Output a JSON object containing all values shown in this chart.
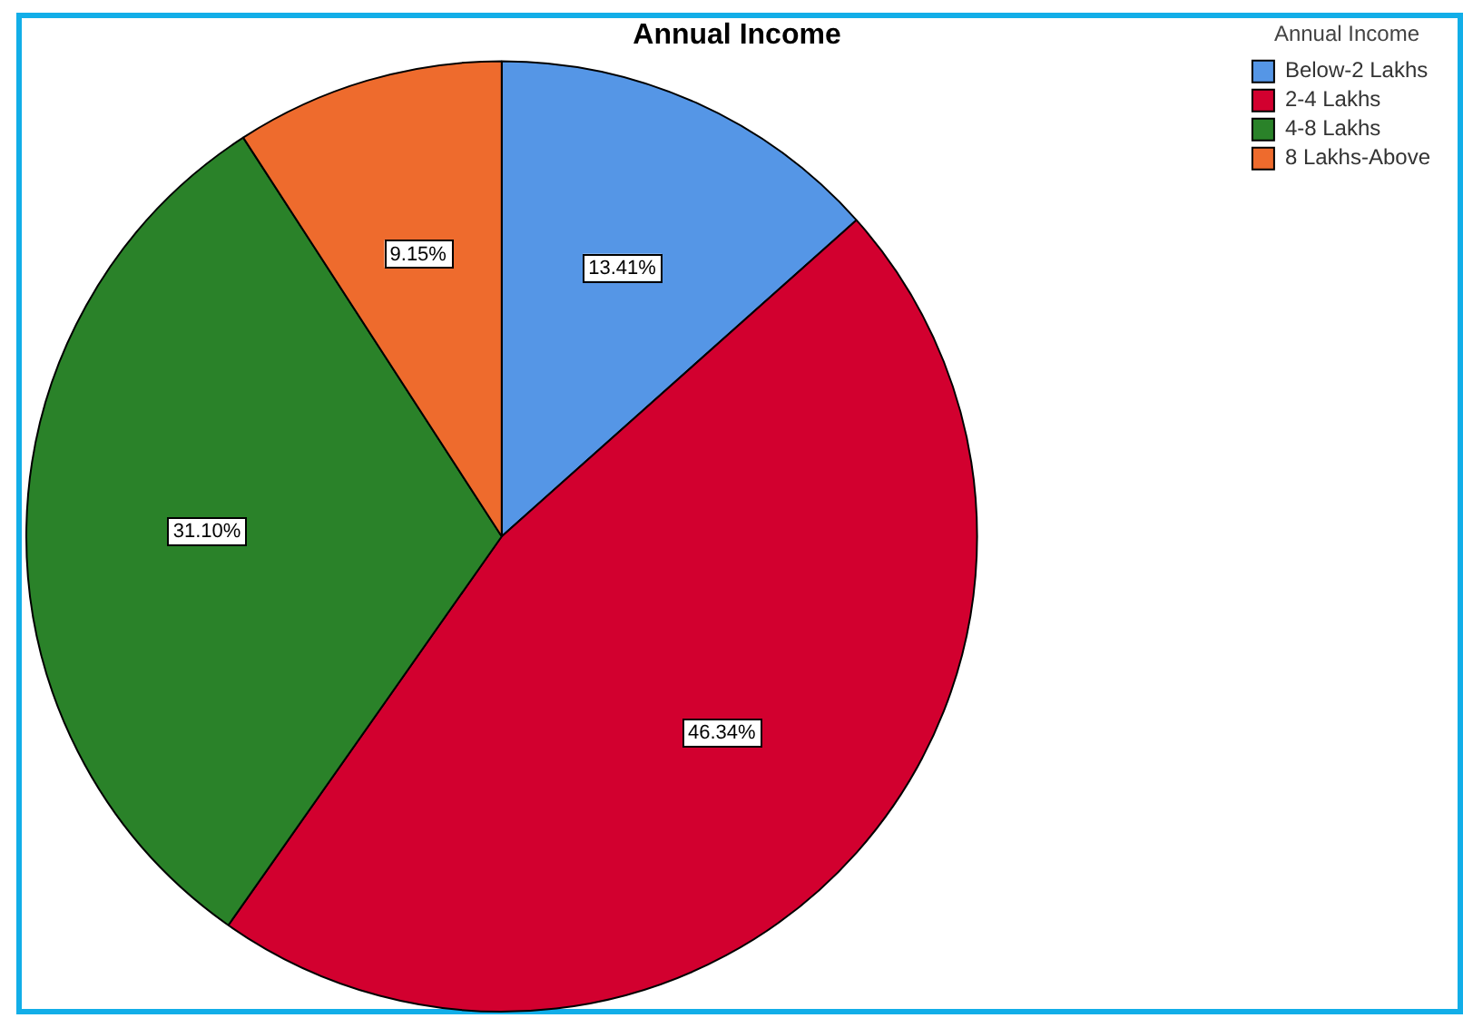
{
  "chart_data": {
    "type": "pie",
    "title": "Annual Income",
    "legend_title": "Annual Income",
    "categories": [
      "Below-2 Lakhs",
      "2-4 Lakhs",
      "4-8 Lakhs",
      "8 Lakhs-Above"
    ],
    "values": [
      13.41,
      46.34,
      31.1,
      9.15
    ],
    "colors": [
      "#5596e6",
      "#d2002f",
      "#2a8229",
      "#ee6b2d"
    ],
    "value_labels": [
      "13.41%",
      "46.34%",
      "31.10%",
      "9.15%"
    ],
    "legend": "top right"
  }
}
